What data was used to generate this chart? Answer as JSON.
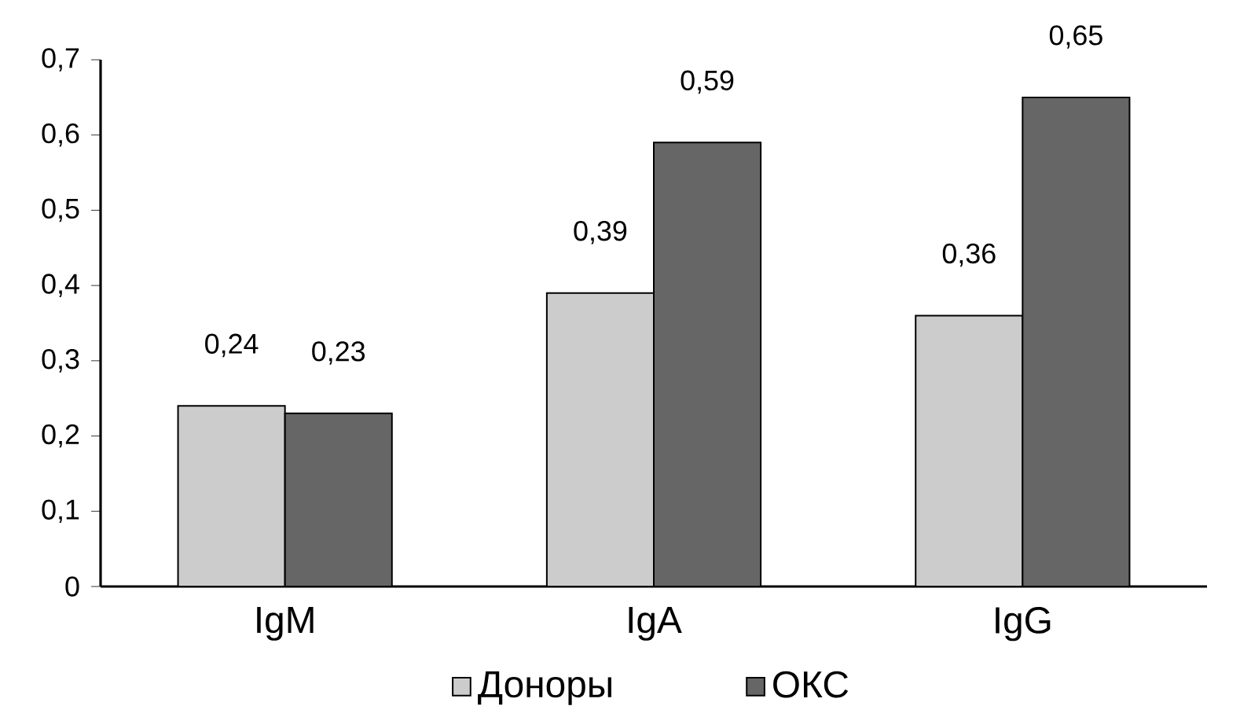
{
  "chart_data": {
    "type": "bar",
    "categories": [
      "IgM",
      "IgA",
      "IgG"
    ],
    "series": [
      {
        "name": "Доноры",
        "color": "#cccccc",
        "values": [
          0.24,
          0.39,
          0.36
        ],
        "value_labels": [
          "0,24",
          "0,39",
          "0,36"
        ]
      },
      {
        "name": "ОКС",
        "color": "#666666",
        "values": [
          0.23,
          0.59,
          0.65
        ],
        "value_labels": [
          "0,23",
          "0,59",
          "0,65"
        ]
      }
    ],
    "ylim": [
      0,
      0.7
    ],
    "yticks": [
      0,
      {
        "value": 0.1,
        "label": "0,1"
      },
      {
        "value": 0.2,
        "label": "0,2"
      },
      {
        "value": 0.3,
        "label": "0,3"
      },
      {
        "value": 0.4,
        "label": "0,4"
      },
      {
        "value": 0.5,
        "label": "0,5"
      },
      {
        "value": 0.6,
        "label": "0,6"
      },
      {
        "value": 0.7,
        "label": "0,7"
      }
    ],
    "grid": false,
    "legend": "bottom"
  }
}
